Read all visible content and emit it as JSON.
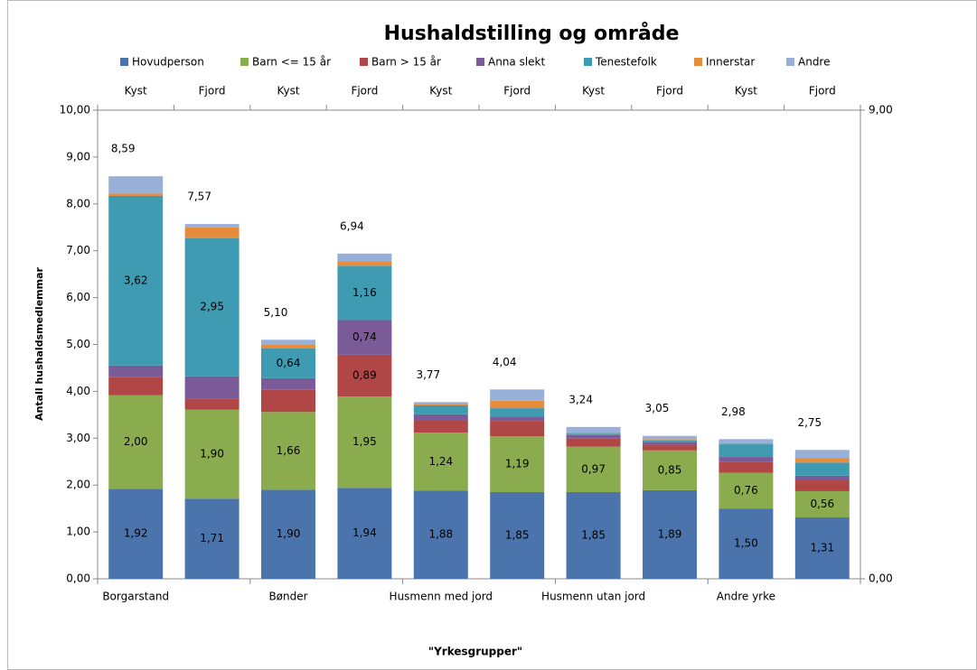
{
  "chart_data": {
    "type": "stacked_bar",
    "title": "Hushaldstilling og område",
    "ylabel": "Antall hushaldsmedlemmar",
    "xlabel": "\"Yrkesgrupper\"",
    "categories": [
      "Kyst",
      "Fjord",
      "Kyst",
      "Fjord",
      "Kyst",
      "Fjord",
      "Kyst",
      "Fjord",
      "Kyst",
      "Fjord"
    ],
    "groups": [
      "Borgarstand",
      "Bønder",
      "Husmenn med jord",
      "Husmenn utan jord",
      "Andre yrke"
    ],
    "series": [
      {
        "name": "Hovudperson",
        "color": "#4a74ab",
        "values": [
          1.92,
          1.71,
          1.9,
          1.94,
          1.88,
          1.85,
          1.85,
          1.89,
          1.5,
          1.31
        ],
        "value_labels": [
          "1,92",
          "1,71",
          "1,90",
          "1,94",
          "1,88",
          "1,85",
          "1,85",
          "1,89",
          "1,50",
          "1,31"
        ]
      },
      {
        "name": "Barn <= 15 år",
        "color": "#8aab4e",
        "values": [
          2.0,
          1.9,
          1.66,
          1.95,
          1.24,
          1.19,
          0.97,
          0.85,
          0.76,
          0.56
        ],
        "value_labels": [
          "2,00",
          "1,90",
          "1,66",
          "1,95",
          "1,24",
          "1,19",
          "0,97",
          "0,85",
          "0,76",
          "0,56"
        ]
      },
      {
        "name": "Barn > 15 år",
        "color": "#b04646",
        "values": [
          0.38,
          0.24,
          0.47,
          0.89,
          0.27,
          0.33,
          0.18,
          0.12,
          0.24,
          0.23
        ],
        "value_labels": [
          null,
          null,
          null,
          "0,89",
          null,
          null,
          null,
          null,
          null,
          null
        ]
      },
      {
        "name": "Anna slekt",
        "color": "#7b5b97",
        "values": [
          0.25,
          0.47,
          0.25,
          0.74,
          0.12,
          0.09,
          0.07,
          0.05,
          0.1,
          0.1
        ],
        "value_labels": [
          null,
          null,
          null,
          "0,74",
          null,
          null,
          null,
          null,
          null,
          null
        ]
      },
      {
        "name": "Tenestefolk",
        "color": "#3f9bb1",
        "values": [
          3.62,
          2.95,
          0.64,
          1.16,
          0.19,
          0.18,
          0.03,
          0.04,
          0.27,
          0.28
        ],
        "value_labels": [
          "3,62",
          "2,95",
          "0,64",
          "1,16",
          null,
          null,
          null,
          null,
          null,
          null
        ]
      },
      {
        "name": "Innerstar",
        "color": "#e68c3b",
        "values": [
          0.05,
          0.23,
          0.07,
          0.1,
          0.03,
          0.16,
          0.02,
          0.03,
          0.02,
          0.1
        ]
      },
      {
        "name": "Andre",
        "color": "#98b0d7",
        "values": [
          0.37,
          0.07,
          0.11,
          0.16,
          0.04,
          0.24,
          0.12,
          0.07,
          0.09,
          0.17
        ]
      }
    ],
    "totals": [
      8.59,
      7.57,
      5.1,
      6.94,
      3.77,
      4.04,
      3.24,
      3.05,
      2.98,
      2.75
    ],
    "total_labels": [
      "8,59",
      "7,57",
      "5,10",
      "6,94",
      "3,77",
      "4,04",
      "3,24",
      "3,05",
      "2,98",
      "2,75"
    ],
    "ylim": [
      0,
      10
    ],
    "yticks": [
      {
        "value": 0,
        "label": "0,00"
      },
      {
        "value": 1,
        "label": "1,00"
      },
      {
        "value": 2,
        "label": "2,00"
      },
      {
        "value": 3,
        "label": "3,00"
      },
      {
        "value": 4,
        "label": "4,00"
      },
      {
        "value": 5,
        "label": "5,00"
      },
      {
        "value": 6,
        "label": "6,00"
      },
      {
        "value": 7,
        "label": "7,00"
      },
      {
        "value": 8,
        "label": "8,00"
      },
      {
        "value": 9,
        "label": "9,00"
      },
      {
        "value": 10,
        "label": "10,00"
      }
    ],
    "y2lim": [
      0,
      9
    ],
    "y2ticks": [
      {
        "value": 0,
        "label": "0,00"
      },
      {
        "value": 9,
        "label": "9,00"
      }
    ],
    "legend": "top"
  }
}
